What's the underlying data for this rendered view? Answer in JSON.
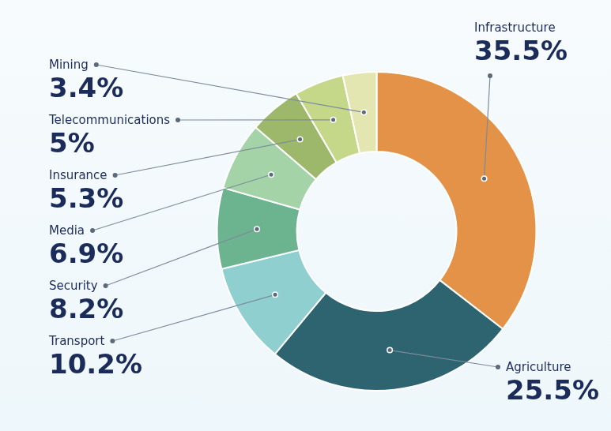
{
  "chart_data": {
    "type": "doughnut",
    "categories": [
      "Infrastructure",
      "Agriculture",
      "Transport",
      "Security",
      "Media",
      "Insurance",
      "Telecommunications",
      "Mining"
    ],
    "values": [
      35.5,
      25.5,
      10.2,
      8.2,
      6.9,
      5.3,
      5,
      3.4
    ],
    "value_labels": [
      "35.5%",
      "25.5%",
      "10.2%",
      "8.2%",
      "6.9%",
      "5.3%",
      "5%",
      "3.4%"
    ],
    "colors": [
      "#e39247",
      "#2e6470",
      "#8fcfd0",
      "#6cb48f",
      "#a3d3a6",
      "#9db86a",
      "#c5d88a",
      "#e3e6b0"
    ],
    "data_labels": true
  }
}
